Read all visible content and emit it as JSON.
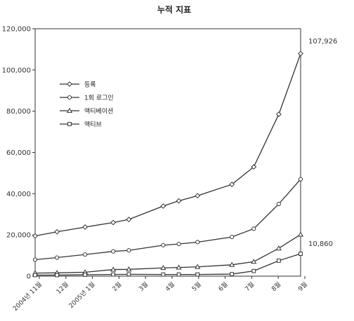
{
  "chart_data": {
    "type": "line",
    "title": "누적 지표",
    "xlabel": "",
    "ylabel": "",
    "ylim": [
      0,
      120000
    ],
    "yticks": [
      "0",
      "20,000",
      "40,000",
      "60,000",
      "80,000",
      "100,000",
      "120,000"
    ],
    "ytick_values": [
      0,
      20000,
      40000,
      60000,
      80000,
      100000,
      120000
    ],
    "x_tick_labels": [
      "2004년 11월",
      "12월",
      "2005년 1월",
      "2월",
      "3월",
      "4월",
      "5월",
      "6월",
      "7월",
      "8월",
      "9월"
    ],
    "legend_position": "upper-left",
    "series": [
      {
        "name": "등록",
        "marker": "diamond",
        "points": [
          [
            0,
            19500
          ],
          [
            0.7,
            21500
          ],
          [
            1.6,
            23800
          ],
          [
            2.5,
            26000
          ],
          [
            3.0,
            27500
          ],
          [
            4.1,
            34000
          ],
          [
            4.6,
            36500
          ],
          [
            5.2,
            39000
          ],
          [
            6.3,
            44500
          ],
          [
            7.0,
            53000
          ],
          [
            7.8,
            78500
          ],
          [
            8.5,
            107926
          ]
        ]
      },
      {
        "name": "1회 로그인",
        "marker": "circle",
        "points": [
          [
            0,
            8000
          ],
          [
            0.7,
            9000
          ],
          [
            1.6,
            10500
          ],
          [
            2.5,
            12000
          ],
          [
            3.0,
            12500
          ],
          [
            4.1,
            15000
          ],
          [
            4.6,
            15600
          ],
          [
            5.2,
            16500
          ],
          [
            6.3,
            19000
          ],
          [
            7.0,
            23000
          ],
          [
            7.8,
            35000
          ],
          [
            8.5,
            47000
          ]
        ]
      },
      {
        "name": "액티베이션",
        "marker": "triangle",
        "points": [
          [
            0,
            1500
          ],
          [
            0.7,
            1600
          ],
          [
            1.6,
            1900
          ],
          [
            2.5,
            3200
          ],
          [
            3.0,
            3300
          ],
          [
            4.1,
            4000
          ],
          [
            4.6,
            4200
          ],
          [
            5.2,
            4500
          ],
          [
            6.3,
            5500
          ],
          [
            7.0,
            7000
          ],
          [
            7.8,
            13500
          ],
          [
            8.5,
            20200
          ]
        ]
      },
      {
        "name": "액티브",
        "marker": "square",
        "points": [
          [
            0,
            500
          ],
          [
            0.7,
            500
          ],
          [
            1.6,
            700
          ],
          [
            2.5,
            800
          ],
          [
            3.0,
            900
          ],
          [
            4.1,
            800
          ],
          [
            4.6,
            800
          ],
          [
            5.2,
            800
          ],
          [
            6.3,
            1000
          ],
          [
            7.0,
            2500
          ],
          [
            7.8,
            7500
          ],
          [
            8.5,
            10860
          ]
        ]
      }
    ],
    "annotations": [
      "107,926",
      "10,860"
    ]
  }
}
